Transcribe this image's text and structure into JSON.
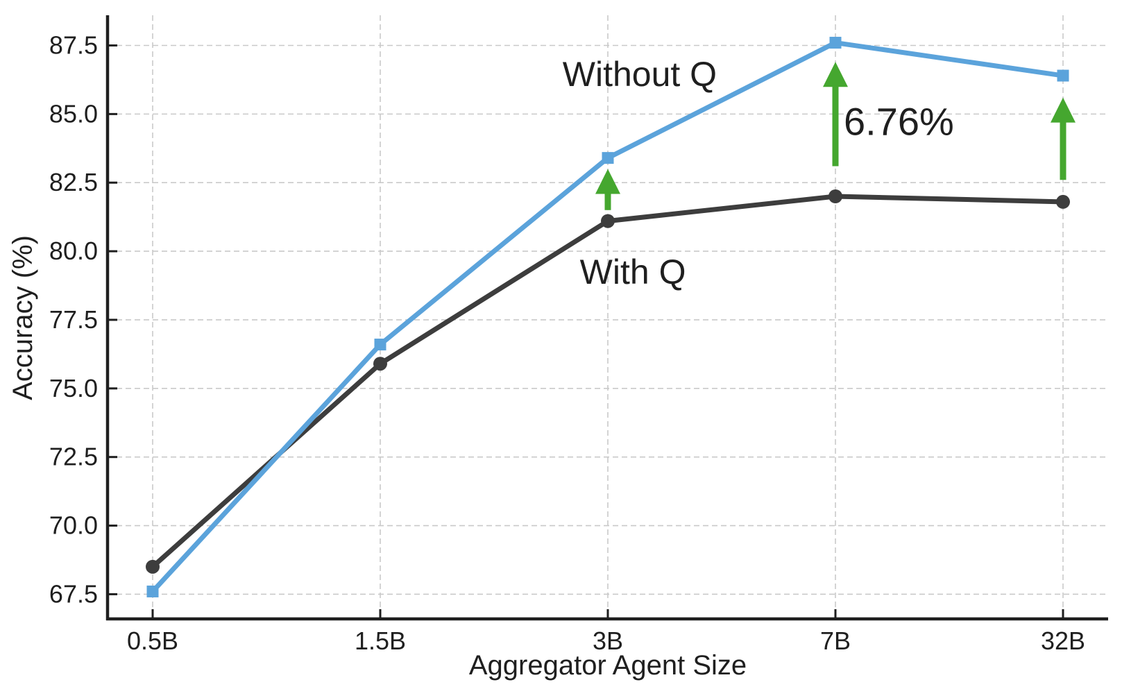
{
  "chart_data": {
    "type": "line",
    "title": "",
    "xlabel": "Aggregator Agent Size",
    "ylabel": "Accuracy (%)",
    "categories": [
      "0.5B",
      "1.5B",
      "3B",
      "7B",
      "32B"
    ],
    "yticks": [
      67.5,
      70.0,
      72.5,
      75.0,
      77.5,
      80.0,
      82.5,
      85.0,
      87.5
    ],
    "ylim": [
      66.6,
      88.6
    ],
    "grid": true,
    "legend_position": "inline-labels",
    "series": [
      {
        "name": "Without Q",
        "color": "#5BA3DB",
        "marker": "square",
        "values": [
          67.6,
          76.6,
          83.4,
          87.6,
          86.4
        ],
        "label_anchor": {
          "x_index": 2.14,
          "value": 86.45
        }
      },
      {
        "name": "With Q",
        "color": "#3D3D3D",
        "marker": "circle",
        "values": [
          68.5,
          75.9,
          81.1,
          82.0,
          81.8
        ],
        "label_anchor": {
          "x_index": 2.11,
          "value": 79.25
        }
      }
    ],
    "annotations": [
      {
        "type": "up-arrow",
        "category": "3B",
        "x_index": 2,
        "from": 81.5,
        "to": 83.0,
        "color": "#45A72F",
        "label": ""
      },
      {
        "type": "up-arrow",
        "category": "7B",
        "x_index": 3,
        "from": 83.1,
        "to": 86.9,
        "color": "#45A72F",
        "label": "6.76%",
        "label_value": 84.75
      },
      {
        "type": "up-arrow",
        "category": "32B",
        "x_index": 4,
        "from": 82.6,
        "to": 85.6,
        "color": "#45A72F",
        "label": ""
      }
    ],
    "colors": {
      "axis": "#1F1F1F",
      "grid": "#C9C9C9",
      "background": "#FFFFFF",
      "without_q_blue": "#5BA3DB",
      "with_q_dark": "#3D3D3D",
      "improvement_green": "#45A72F"
    }
  }
}
